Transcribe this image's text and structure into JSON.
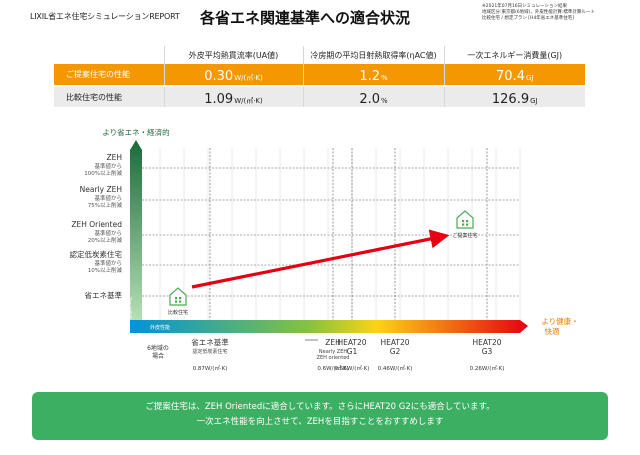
{
  "header": {
    "brand": "LIXIL省エネ住宅シミュレーションREPORT",
    "title": "各省エネ関連基準への適合状況",
    "meta": [
      "※2021年07月16日シミュレーション結果",
      "地域区分:東京都(6地域)、外皮性能計算:標準計算ルート",
      "比較住宅 / 想定プラン [H4年省エネ基準住宅]"
    ]
  },
  "table": {
    "headers": [
      "外皮平均熱貫流率(UA値)",
      "冷房期の平均日射熱取得率(ηAC値)",
      "一次エネルギー消費量(GJ)"
    ],
    "rows": [
      {
        "label": "ご提案住宅の性能",
        "values": [
          {
            "num": "0.30",
            "unit": "W/(㎡·K)"
          },
          {
            "num": "1.2",
            "unit": "%"
          },
          {
            "num": "70.4",
            "unit": "GJ"
          }
        ]
      },
      {
        "label": "比較住宅の性能",
        "values": [
          {
            "num": "1.09",
            "unit": "W/(㎡·K)"
          },
          {
            "num": "2.0",
            "unit": "%"
          },
          {
            "num": "126.9",
            "unit": "GJ"
          }
        ]
      }
    ]
  },
  "chart_data": {
    "type": "line",
    "y_axis_title": "より省エネ・経済的",
    "x_axis_title": [
      "より健康・",
      "快適"
    ],
    "x_bar_label": "外皮性能",
    "y_bar_label": "一次エネ性能",
    "y_levels": [
      {
        "name": "ZEH",
        "notes": [
          "基準値から",
          "100%以上削減"
        ]
      },
      {
        "name": "Nearly ZEH",
        "notes": [
          "基準値から",
          "75%以上削減"
        ]
      },
      {
        "name": "ZEH Oriented",
        "notes": [
          "基準値から",
          "20%以上削減"
        ]
      },
      {
        "name": "認定低炭素住宅",
        "notes": [
          "基準値から",
          "10%以上削減"
        ]
      },
      {
        "name": "省エネ基準",
        "notes": []
      }
    ],
    "x_levels": [
      {
        "name": "省エネ基準",
        "sub": "認定低炭素住宅",
        "ua": "0.87",
        "unit": "W/(㎡·K)"
      },
      {
        "name": "ZEH",
        "sub": "Nearly ZEH\nZEH oriented",
        "ua": "0.6",
        "unit": "W/(㎡·K)"
      },
      {
        "name": "HEAT20\nG1",
        "sub": "",
        "ua": "0.56",
        "unit": "W/(㎡·K)"
      },
      {
        "name": "HEAT20\nG2",
        "sub": "",
        "ua": "0.46",
        "unit": "W/(㎡·K)"
      },
      {
        "name": "HEAT20\nG3",
        "sub": "",
        "ua": "0.26",
        "unit": "W/(㎡·K)"
      }
    ],
    "region_note": [
      "6地域の",
      "場合"
    ],
    "houses": [
      {
        "label": "比較住宅",
        "ua": 1.09,
        "level": "省エネ基準"
      },
      {
        "label": "ご提案住宅",
        "ua": 0.3,
        "level": "ZEH Oriented"
      }
    ],
    "colors": {
      "y_bar_top": "#1a6b3a",
      "y_bar_bottom": "#b6dfb6",
      "x_start": "#0093d9",
      "x_mid": "#86c240",
      "x_yellow": "#fbd414",
      "x_end": "#e60012",
      "arrow": "#e60012",
      "house": "#4aa957"
    }
  },
  "advice": {
    "lines": [
      "ご提案住宅は、ZEH Orientedに適合しています。さらにHEAT20 G2にも適合しています。",
      "一次エネ性能を向上させて、ZEHを目指すことをおすすめします"
    ]
  }
}
